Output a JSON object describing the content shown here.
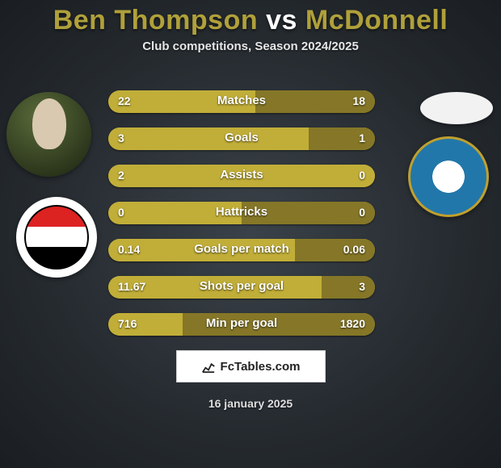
{
  "title": {
    "player1": "Ben Thompson",
    "vs": "vs",
    "player2": "McDonnell",
    "color_players": "#b0a03a",
    "color_vs": "#ffffff",
    "fontsize": 34
  },
  "subtitle": "Club competitions, Season 2024/2025",
  "bars": {
    "left_fill_color": "#c1ae38",
    "right_fill_color": "#857727",
    "base_color": "#a59233",
    "label_color": "#ffffff",
    "label_fontsize": 15,
    "value_fontsize": 14,
    "rows": [
      {
        "label": "Matches",
        "left": "22",
        "right": "18",
        "left_frac": 0.55,
        "right_frac": 0.45
      },
      {
        "label": "Goals",
        "left": "3",
        "right": "1",
        "left_frac": 0.75,
        "right_frac": 0.25
      },
      {
        "label": "Assists",
        "left": "2",
        "right": "0",
        "left_frac": 1.0,
        "right_frac": 0.0
      },
      {
        "label": "Hattricks",
        "left": "0",
        "right": "0",
        "left_frac": 0.5,
        "right_frac": 0.5
      },
      {
        "label": "Goals per match",
        "left": "0.14",
        "right": "0.06",
        "left_frac": 0.7,
        "right_frac": 0.3
      },
      {
        "label": "Shots per goal",
        "left": "11.67",
        "right": "3",
        "left_frac": 0.8,
        "right_frac": 0.2
      },
      {
        "label": "Min per goal",
        "left": "716",
        "right": "1820",
        "left_frac": 0.28,
        "right_frac": 0.72
      }
    ]
  },
  "footer": {
    "logo_text": "FcTables.com",
    "date": "16 january 2025"
  },
  "background": {
    "inner": "#3a4249",
    "outer": "#1a1e22"
  }
}
